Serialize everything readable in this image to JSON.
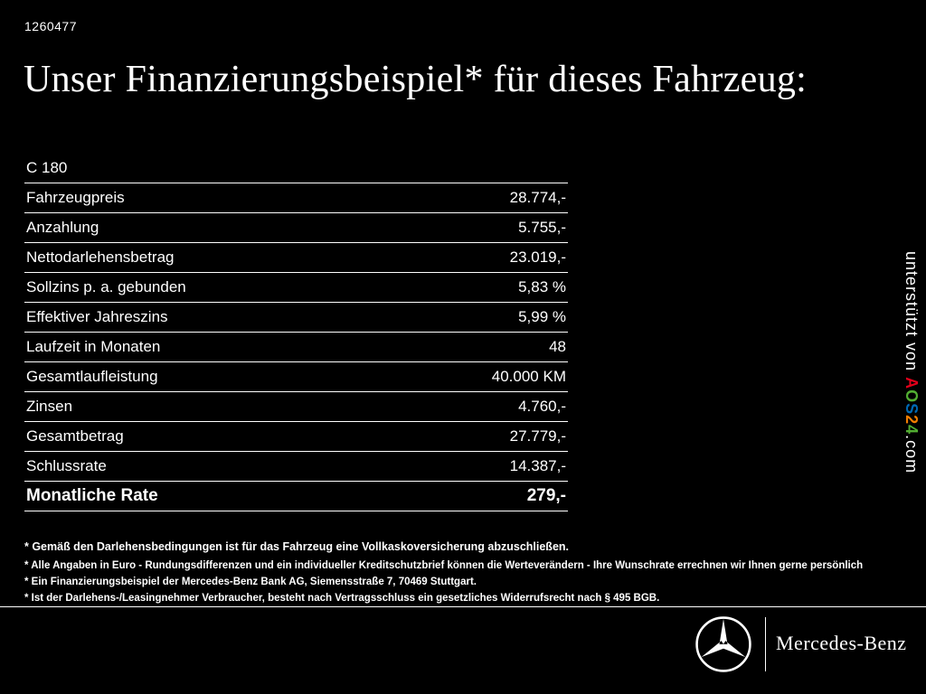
{
  "page": {
    "ref_id": "1260477",
    "title": "Unser Finanzierungsbeispiel* für dieses Fahrzeug:"
  },
  "financing_table": {
    "model": "C 180",
    "rows": [
      {
        "label": "Fahrzeugpreis",
        "value": "28.774,-"
      },
      {
        "label": "Anzahlung",
        "value": "5.755,-"
      },
      {
        "label": "Nettodarlehensbetrag",
        "value": "23.019,-"
      },
      {
        "label": "Sollzins p. a. gebunden",
        "value": "5,83 %"
      },
      {
        "label": "Effektiver Jahreszins",
        "value": "5,99 %"
      },
      {
        "label": "Laufzeit in Monaten",
        "value": "48"
      },
      {
        "label": "Gesamtlaufleistung",
        "value": "40.000 KM"
      },
      {
        "label": "Zinsen",
        "value": "4.760,-"
      },
      {
        "label": "Gesamtbetrag",
        "value": "27.779,-"
      },
      {
        "label": "Schlussrate",
        "value": "14.387,-"
      }
    ],
    "highlight_row": {
      "label": "Monatliche Rate",
      "value": "279,-"
    }
  },
  "footnotes": [
    "* Gemäß den Darlehensbedingungen ist für das Fahrzeug eine Vollkaskoversicherung abzuschließen.",
    "* Alle Angaben in Euro - Rundungsdifferenzen und ein individueller Kreditschutzbrief können die Werteverändern - Ihre Wunschrate errechnen wir Ihnen gerne persönlich",
    "* Ein Finanzierungsbeispiel der Mercedes-Benz Bank AG, Siemensstraße 7, 70469 Stuttgart.",
    "* Ist der Darlehens-/Leasingnehmer Verbraucher, besteht nach Vertragsschluss ein gesetzliches Widerrufsrecht nach § 495 BGB."
  ],
  "watermark": {
    "prefix": "unterstützt von ",
    "brand_letters": [
      {
        "char": "A",
        "color": "#e2001a"
      },
      {
        "char": "O",
        "color": "#52ae32"
      },
      {
        "char": "S",
        "color": "#0069b4"
      },
      {
        "char": "2",
        "color": "#f07d00"
      },
      {
        "char": "4",
        "color": "#52ae32"
      }
    ],
    "suffix": ".com"
  },
  "footer": {
    "brand": "Mercedes-Benz"
  },
  "colors": {
    "background": "#000000",
    "text": "#ffffff"
  }
}
